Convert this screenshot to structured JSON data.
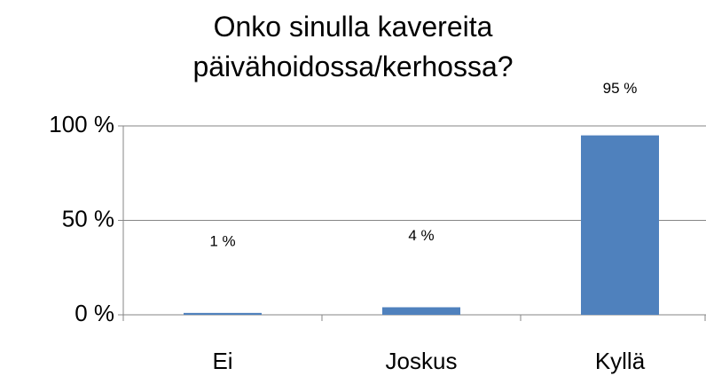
{
  "chart_data": {
    "type": "bar",
    "title": "Onko sinulla kavereita päivähoidossa/kerhossa?",
    "categories": [
      "Ei",
      "Joskus",
      "Kyllä"
    ],
    "values": [
      1,
      4,
      95
    ],
    "value_labels": [
      "1 %",
      "4 %",
      "95 %"
    ],
    "color": "#4f81bd",
    "ylim": [
      0,
      100
    ],
    "yticks": [
      {
        "value": 0,
        "label": "0 %"
      },
      {
        "value": 50,
        "label": "50 %"
      },
      {
        "value": 100,
        "label": "100 %"
      }
    ],
    "grid": true
  }
}
